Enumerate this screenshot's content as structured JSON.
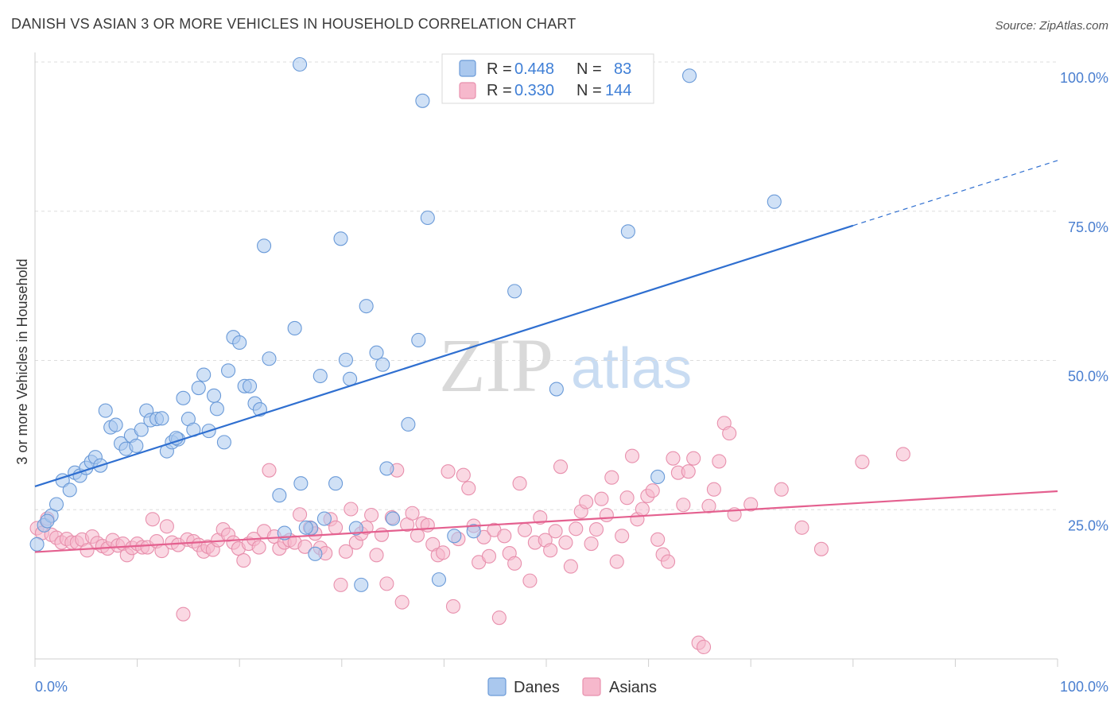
{
  "title": "DANISH VS ASIAN 3 OR MORE VEHICLES IN HOUSEHOLD CORRELATION CHART",
  "source": "Source: ZipAtlas.com",
  "watermark": {
    "zip": "ZIP",
    "atlas": "atlas"
  },
  "colors": {
    "danes_fill": "#aac8ee",
    "danes_stroke": "#6a9ad8",
    "danes_line": "#2f6fd0",
    "asians_fill": "#f6b8cc",
    "asians_stroke": "#e890ad",
    "asians_line": "#e4608f",
    "tick_label": "#4a7fd0",
    "grid": "#dddddd"
  },
  "legend_box": {
    "rows": [
      {
        "r_label": "R = ",
        "r_value": "0.448",
        "n_label": "N = ",
        "n_value": "83"
      },
      {
        "r_label": "R = ",
        "r_value": "0.330",
        "n_label": "N = ",
        "n_value": "144"
      }
    ]
  },
  "bottom_legend": [
    "Danes",
    "Asians"
  ],
  "chart_data": {
    "type": "scatter",
    "title": "DANISH VS ASIAN 3 OR MORE VEHICLES IN HOUSEHOLD CORRELATION CHART",
    "xlabel": "",
    "ylabel": "3 or more Vehicles in Household",
    "xlim": [
      0,
      100
    ],
    "ylim": [
      0,
      100
    ],
    "x_tick_labels": [
      "0.0%",
      "100.0%"
    ],
    "y_ticks": [
      25,
      50,
      75,
      100
    ],
    "y_tick_labels": [
      "25.0%",
      "50.0%",
      "75.0%",
      "100.0%"
    ],
    "grid": "horizontal dashed",
    "legend_position": "top-center",
    "series": [
      {
        "name": "Danes",
        "R": 0.448,
        "N": 83,
        "trend": {
          "x0": 0,
          "y0": 28.9,
          "x1": 80,
          "y1": 72.6,
          "dashed_to_x": 100,
          "dashed_to_y": 83.5
        },
        "points": [
          [
            0.2,
            19.2
          ],
          [
            0.9,
            22.4
          ],
          [
            1.6,
            24.0
          ],
          [
            2.1,
            25.9
          ],
          [
            2.7,
            29.9
          ],
          [
            3.4,
            28.3
          ],
          [
            3.9,
            31.2
          ],
          [
            4.4,
            30.7
          ],
          [
            5.0,
            32.0
          ],
          [
            5.5,
            33.0
          ],
          [
            5.9,
            33.8
          ],
          [
            6.4,
            32.4
          ],
          [
            6.9,
            41.6
          ],
          [
            7.4,
            38.8
          ],
          [
            7.9,
            39.2
          ],
          [
            8.4,
            36.1
          ],
          [
            8.9,
            35.2
          ],
          [
            9.4,
            37.4
          ],
          [
            9.9,
            35.7
          ],
          [
            10.4,
            38.4
          ],
          [
            10.9,
            41.6
          ],
          [
            11.3,
            40.0
          ],
          [
            11.9,
            40.2
          ],
          [
            12.4,
            40.3
          ],
          [
            12.9,
            34.8
          ],
          [
            13.4,
            36.3
          ],
          [
            14.0,
            36.8
          ],
          [
            14.5,
            43.7
          ],
          [
            15.0,
            40.2
          ],
          [
            15.5,
            38.4
          ],
          [
            16.0,
            45.4
          ],
          [
            16.5,
            47.6
          ],
          [
            17.0,
            38.2
          ],
          [
            17.5,
            44.1
          ],
          [
            17.8,
            41.9
          ],
          [
            18.5,
            36.3
          ],
          [
            18.9,
            48.3
          ],
          [
            19.4,
            53.9
          ],
          [
            20.0,
            53.0
          ],
          [
            20.5,
            45.7
          ],
          [
            21.0,
            45.7
          ],
          [
            21.5,
            42.8
          ],
          [
            22.0,
            41.8
          ],
          [
            22.4,
            69.2
          ],
          [
            22.9,
            50.3
          ],
          [
            23.9,
            27.4
          ],
          [
            24.4,
            21.1
          ],
          [
            25.4,
            55.4
          ],
          [
            25.9,
            99.6
          ],
          [
            26.0,
            29.4
          ],
          [
            27.0,
            21.9
          ],
          [
            27.4,
            17.6
          ],
          [
            27.9,
            47.4
          ],
          [
            28.3,
            23.5
          ],
          [
            29.4,
            29.4
          ],
          [
            29.9,
            70.4
          ],
          [
            30.4,
            50.1
          ],
          [
            30.8,
            46.9
          ],
          [
            31.4,
            21.9
          ],
          [
            31.9,
            12.4
          ],
          [
            32.4,
            59.1
          ],
          [
            33.4,
            51.3
          ],
          [
            34.0,
            49.3
          ],
          [
            34.4,
            31.9
          ],
          [
            35.0,
            23.5
          ],
          [
            36.5,
            39.3
          ],
          [
            37.5,
            53.4
          ],
          [
            37.9,
            93.5
          ],
          [
            38.4,
            73.9
          ],
          [
            39.5,
            13.3
          ],
          [
            41.0,
            20.6
          ],
          [
            42.9,
            21.4
          ],
          [
            45.0,
            97.7
          ],
          [
            46.9,
            61.6
          ],
          [
            49.0,
            99.6
          ],
          [
            51.0,
            45.2
          ],
          [
            58.0,
            71.6
          ],
          [
            60.9,
            30.5
          ],
          [
            64.0,
            97.7
          ],
          [
            72.3,
            76.6
          ],
          [
            1.2,
            23.1
          ],
          [
            26.5,
            22.0
          ],
          [
            13.8,
            37.0
          ]
        ]
      },
      {
        "name": "Asians",
        "R": 0.33,
        "N": 144,
        "trend": {
          "x0": 0,
          "y0": 17.9,
          "x1": 100,
          "y1": 28.1
        },
        "points": [
          [
            0.2,
            21.9
          ],
          [
            0.7,
            21.1
          ],
          [
            1.2,
            23.5
          ],
          [
            1.6,
            20.8
          ],
          [
            2.1,
            20.3
          ],
          [
            2.6,
            19.5
          ],
          [
            3.1,
            20.1
          ],
          [
            3.6,
            19.5
          ],
          [
            4.1,
            19.5
          ],
          [
            4.6,
            20.0
          ],
          [
            5.1,
            18.2
          ],
          [
            5.6,
            20.5
          ],
          [
            6.1,
            19.4
          ],
          [
            6.6,
            18.9
          ],
          [
            7.1,
            18.5
          ],
          [
            7.6,
            19.9
          ],
          [
            8.1,
            19.0
          ],
          [
            8.6,
            19.3
          ],
          [
            9.0,
            17.4
          ],
          [
            9.5,
            18.6
          ],
          [
            10.0,
            19.3
          ],
          [
            10.5,
            18.7
          ],
          [
            11.0,
            18.7
          ],
          [
            11.5,
            23.4
          ],
          [
            11.9,
            19.7
          ],
          [
            12.4,
            18.1
          ],
          [
            12.9,
            22.2
          ],
          [
            13.4,
            19.5
          ],
          [
            14.0,
            19.1
          ],
          [
            14.5,
            7.5
          ],
          [
            14.9,
            20.0
          ],
          [
            15.5,
            19.7
          ],
          [
            16.0,
            19.1
          ],
          [
            16.5,
            18.0
          ],
          [
            16.9,
            18.8
          ],
          [
            17.4,
            18.3
          ],
          [
            17.9,
            19.9
          ],
          [
            18.4,
            21.7
          ],
          [
            18.9,
            20.8
          ],
          [
            19.4,
            19.5
          ],
          [
            19.9,
            18.5
          ],
          [
            20.4,
            16.5
          ],
          [
            20.9,
            19.3
          ],
          [
            21.4,
            20.1
          ],
          [
            21.9,
            18.7
          ],
          [
            22.4,
            21.4
          ],
          [
            22.9,
            31.6
          ],
          [
            23.4,
            20.5
          ],
          [
            23.9,
            18.5
          ],
          [
            24.4,
            19.5
          ],
          [
            24.9,
            19.9
          ],
          [
            25.4,
            19.5
          ],
          [
            25.9,
            24.2
          ],
          [
            26.4,
            18.8
          ],
          [
            26.9,
            22.0
          ],
          [
            27.4,
            21.0
          ],
          [
            27.9,
            18.6
          ],
          [
            28.4,
            17.7
          ],
          [
            28.9,
            23.4
          ],
          [
            29.4,
            22.0
          ],
          [
            29.9,
            12.4
          ],
          [
            30.4,
            18.0
          ],
          [
            30.9,
            25.1
          ],
          [
            31.4,
            19.5
          ],
          [
            31.9,
            21.0
          ],
          [
            32.4,
            22.0
          ],
          [
            32.9,
            24.1
          ],
          [
            33.4,
            17.4
          ],
          [
            33.9,
            20.8
          ],
          [
            34.4,
            12.6
          ],
          [
            34.9,
            23.7
          ],
          [
            35.4,
            31.6
          ],
          [
            35.9,
            9.5
          ],
          [
            36.4,
            22.5
          ],
          [
            36.9,
            24.4
          ],
          [
            37.4,
            20.7
          ],
          [
            37.9,
            22.7
          ],
          [
            38.4,
            22.4
          ],
          [
            38.9,
            19.2
          ],
          [
            39.4,
            17.4
          ],
          [
            39.9,
            17.8
          ],
          [
            40.4,
            31.4
          ],
          [
            40.9,
            8.8
          ],
          [
            41.4,
            20.1
          ],
          [
            41.9,
            30.8
          ],
          [
            42.4,
            28.6
          ],
          [
            42.9,
            22.3
          ],
          [
            43.4,
            16.2
          ],
          [
            43.9,
            20.4
          ],
          [
            44.4,
            17.2
          ],
          [
            44.9,
            21.6
          ],
          [
            45.4,
            6.9
          ],
          [
            45.9,
            20.6
          ],
          [
            46.4,
            17.7
          ],
          [
            46.9,
            16.0
          ],
          [
            47.4,
            29.4
          ],
          [
            47.9,
            21.6
          ],
          [
            48.4,
            13.1
          ],
          [
            48.9,
            19.5
          ],
          [
            49.4,
            23.7
          ],
          [
            49.9,
            19.9
          ],
          [
            50.4,
            18.2
          ],
          [
            50.9,
            21.4
          ],
          [
            51.4,
            32.2
          ],
          [
            51.9,
            19.5
          ],
          [
            52.4,
            15.5
          ],
          [
            52.9,
            21.8
          ],
          [
            53.4,
            24.7
          ],
          [
            53.9,
            26.3
          ],
          [
            54.4,
            19.3
          ],
          [
            54.9,
            21.7
          ],
          [
            55.4,
            26.8
          ],
          [
            55.9,
            24.1
          ],
          [
            56.4,
            30.4
          ],
          [
            56.9,
            16.3
          ],
          [
            57.4,
            20.6
          ],
          [
            57.9,
            27.0
          ],
          [
            58.4,
            34.0
          ],
          [
            58.9,
            23.4
          ],
          [
            59.4,
            25.1
          ],
          [
            59.9,
            27.3
          ],
          [
            60.4,
            28.2
          ],
          [
            60.9,
            20.0
          ],
          [
            61.4,
            17.5
          ],
          [
            61.9,
            16.3
          ],
          [
            62.4,
            33.6
          ],
          [
            62.9,
            31.2
          ],
          [
            63.4,
            25.8
          ],
          [
            63.9,
            31.4
          ],
          [
            64.4,
            33.6
          ],
          [
            64.9,
            2.7
          ],
          [
            65.4,
            2.0
          ],
          [
            65.9,
            25.6
          ],
          [
            66.4,
            28.4
          ],
          [
            66.9,
            33.1
          ],
          [
            67.4,
            39.5
          ],
          [
            67.9,
            37.8
          ],
          [
            68.4,
            24.2
          ],
          [
            70.0,
            25.9
          ],
          [
            73.0,
            28.4
          ],
          [
            75.0,
            22.0
          ],
          [
            76.9,
            18.4
          ],
          [
            80.9,
            33.0
          ],
          [
            84.9,
            34.3
          ]
        ]
      }
    ]
  }
}
